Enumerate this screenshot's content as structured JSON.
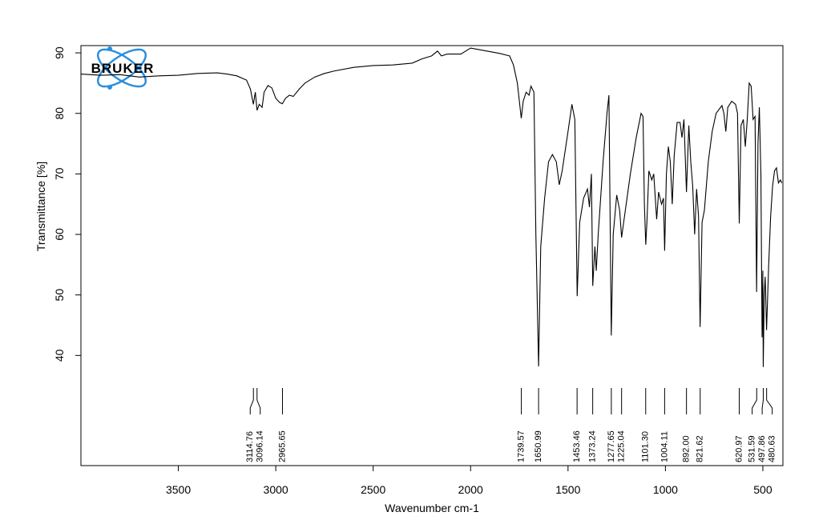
{
  "chart_data": {
    "type": "line",
    "logo": "BRUKER",
    "xlabel": "Wavenumber cm-1",
    "ylabel": "Transmittance [%]",
    "xlim": [
      4000,
      397
    ],
    "ylim": [
      21.8,
      91.2
    ],
    "xticks": [
      3500,
      3000,
      2500,
      2000,
      1500,
      1000,
      500
    ],
    "yticks": [
      40,
      50,
      60,
      70,
      80,
      90
    ],
    "color": "#000000",
    "x": [
      4000,
      3900,
      3800,
      3700,
      3600,
      3500,
      3400,
      3300,
      3250,
      3200,
      3150,
      3130,
      3115,
      3105,
      3096,
      3085,
      3070,
      3060,
      3040,
      3020,
      3000,
      2980,
      2966,
      2950,
      2930,
      2910,
      2880,
      2850,
      2800,
      2750,
      2700,
      2600,
      2500,
      2400,
      2300,
      2250,
      2200,
      2170,
      2150,
      2120,
      2050,
      2000,
      1950,
      1900,
      1850,
      1800,
      1780,
      1760,
      1740,
      1730,
      1715,
      1700,
      1690,
      1675,
      1665,
      1651,
      1640,
      1620,
      1600,
      1580,
      1560,
      1545,
      1530,
      1500,
      1480,
      1465,
      1453,
      1440,
      1420,
      1400,
      1390,
      1380,
      1373,
      1362,
      1355,
      1345,
      1320,
      1300,
      1290,
      1278,
      1268,
      1250,
      1235,
      1225,
      1210,
      1180,
      1150,
      1125,
      1115,
      1108,
      1101,
      1095,
      1085,
      1070,
      1060,
      1045,
      1035,
      1020,
      1010,
      1004,
      995,
      985,
      975,
      965,
      955,
      940,
      925,
      915,
      905,
      892,
      880,
      870,
      860,
      850,
      840,
      830,
      822,
      812,
      800,
      780,
      760,
      740,
      710,
      700,
      690,
      680,
      660,
      640,
      630,
      621,
      612,
      600,
      590,
      580,
      570,
      560,
      550,
      540,
      532,
      525,
      518,
      510,
      504,
      500,
      498,
      493,
      488,
      481,
      470,
      460,
      450,
      440,
      430,
      420,
      410,
      403
    ],
    "values": [
      86.5,
      86.3,
      86.4,
      86.0,
      86.2,
      86.3,
      86.6,
      86.7,
      86.5,
      86.2,
      85.5,
      84.0,
      81.5,
      83.5,
      80.5,
      81.5,
      81.0,
      83.5,
      84.6,
      84.2,
      82.5,
      81.8,
      81.6,
      82.5,
      83.0,
      82.8,
      84.0,
      85.0,
      86.0,
      86.6,
      87.0,
      87.6,
      87.9,
      88.0,
      88.3,
      89.0,
      89.5,
      90.3,
      89.5,
      89.8,
      89.8,
      90.8,
      90.5,
      90.2,
      89.9,
      89.5,
      88.0,
      85.0,
      79.2,
      82.0,
      83.5,
      83.0,
      84.5,
      83.5,
      60.0,
      38.2,
      58.0,
      66.0,
      72.0,
      73.2,
      72.0,
      68.2,
      70.5,
      77.0,
      81.5,
      79.0,
      49.8,
      62.0,
      66.0,
      67.5,
      64.5,
      70.0,
      51.5,
      58.0,
      54.0,
      60.0,
      72.0,
      80.0,
      83.0,
      43.3,
      60.0,
      66.5,
      64.0,
      59.5,
      63.0,
      70.0,
      76.0,
      80.0,
      79.5,
      65.0,
      58.3,
      62.0,
      70.5,
      69.0,
      70.0,
      62.5,
      67.0,
      65.0,
      66.0,
      57.3,
      70.0,
      74.5,
      72.0,
      65.0,
      73.0,
      78.5,
      78.5,
      76.0,
      79.0,
      67.0,
      78.0,
      72.0,
      68.0,
      60.0,
      67.5,
      63.0,
      44.7,
      62.0,
      64.0,
      72.0,
      77.0,
      80.0,
      81.3,
      80.0,
      77.0,
      81.0,
      82.0,
      81.5,
      80.0,
      61.8,
      78.0,
      79.0,
      74.5,
      79.0,
      85.0,
      84.5,
      79.0,
      79.5,
      50.5,
      75.0,
      81.0,
      70.0,
      43.0,
      54.0,
      38.1,
      50.0,
      53.0,
      44.2,
      55.0,
      63.0,
      68.0,
      70.5,
      71.0,
      68.5,
      69.0,
      68.5
    ],
    "peaks": [
      3114.76,
      3096.14,
      2965.65,
      1739.57,
      1650.99,
      1453.46,
      1373.24,
      1277.65,
      1225.04,
      {
        "value": 1101.3,
        "label": "1101.30"
      },
      1004.11,
      {
        "value": 892,
        "label": "892.00"
      },
      821.62,
      620.97,
      531.59,
      497.86,
      480.63
    ]
  }
}
